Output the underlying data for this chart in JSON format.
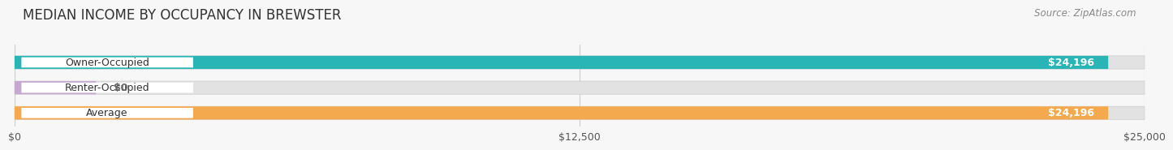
{
  "title": "MEDIAN INCOME BY OCCUPANCY IN BREWSTER",
  "source": "Source: ZipAtlas.com",
  "categories": [
    "Owner-Occupied",
    "Renter-Occupied",
    "Average"
  ],
  "values": [
    24196,
    0,
    24196
  ],
  "bar_colors": [
    "#29b5b5",
    "#c4a8d0",
    "#f5a94e"
  ],
  "value_labels": [
    "$24,196",
    "$0",
    "$24,196"
  ],
  "x_ticks": [
    0,
    12500,
    25000
  ],
  "x_tick_labels": [
    "$0",
    "$12,500",
    "$25,000"
  ],
  "xlim_max": 25000,
  "background_color": "#f7f7f7",
  "bar_bg_color": "#e2e2e2",
  "title_fontsize": 12,
  "source_fontsize": 8.5,
  "label_fontsize": 9,
  "value_fontsize": 9,
  "bar_height": 0.52,
  "renter_stub_value": 1800
}
